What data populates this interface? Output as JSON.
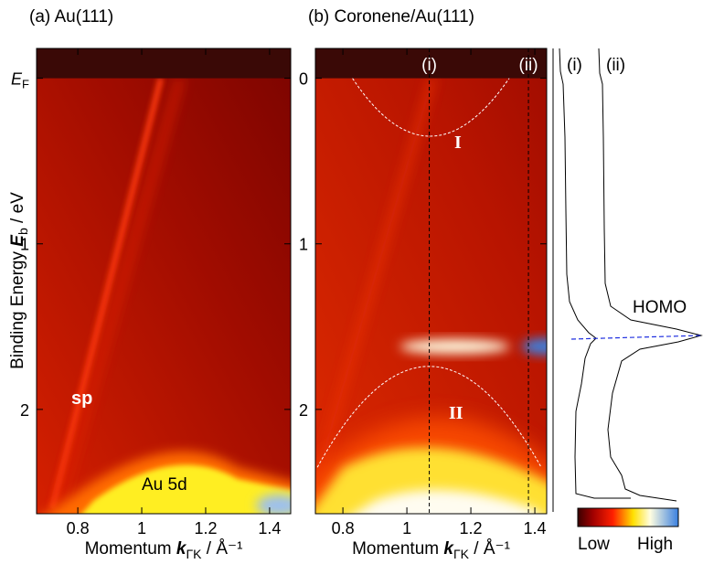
{
  "chart_data": [
    {
      "type": "heatmap",
      "title": "(a) Au(111)",
      "xlim": [
        0.671,
        1.466
      ],
      "xticks": [
        0.8,
        {
          "value": 1,
          "label": "1"
        },
        1.2,
        1.4
      ],
      "ylim": [
        -0.18,
        2.63
      ],
      "yticks": [
        {
          "value": 0,
          "label": "E"
        },
        1,
        2
      ],
      "ytick0_sub": "F",
      "ylabel": {
        "text": "Binding Energy ",
        "var": "E",
        "sub": "b",
        "unit": " / eV"
      },
      "xlabel": {
        "text": "Momentum ",
        "var": "k",
        "sub": "ΓK",
        "unit": " / Å⁻¹"
      },
      "annotations": [
        "sp",
        "Au 5d"
      ]
    },
    {
      "type": "heatmap",
      "title": "(b) Coronene/Au(111)",
      "xlim": [
        0.714,
        1.437
      ],
      "xticks": [
        0.8,
        {
          "value": 1,
          "label": "1"
        },
        1.2,
        1.4
      ],
      "ylim": [
        -0.18,
        2.63
      ],
      "yticks": [
        0,
        1,
        2
      ],
      "xlabel": {
        "text": "Momentum ",
        "var": "k",
        "sub": "ΓK",
        "unit": " / Å⁻¹"
      },
      "annotations": [
        "I",
        "II"
      ],
      "cuts": [
        {
          "label": "(i)",
          "k": 1.07
        },
        {
          "label": "(ii)",
          "k": 1.38
        }
      ]
    }
  ],
  "edc": {
    "labels": [
      "(i)",
      "(ii)"
    ],
    "peak_label": "HOMO"
  },
  "colorbar": {
    "low": "Low",
    "high": "High"
  }
}
